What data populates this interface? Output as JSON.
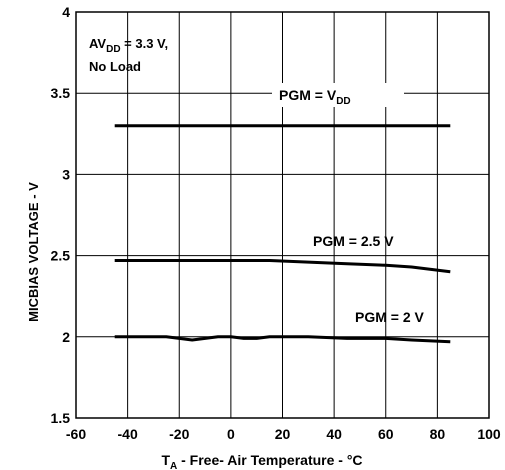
{
  "chart_data": {
    "type": "line",
    "xlabel": {
      "main": "T",
      "sub": "A",
      "rest": " - Free- Air Temperature - °C"
    },
    "ylabel": "MICBIAS VOLTAGE - V",
    "xlim": [
      -60,
      100
    ],
    "ylim": [
      1.5,
      4
    ],
    "xticks": [
      -60,
      -40,
      -20,
      0,
      20,
      40,
      60,
      80,
      100
    ],
    "xtick_labels": [
      "-60",
      "-40",
      "-20",
      "0",
      "20",
      "40",
      "60",
      "80",
      "100"
    ],
    "yticks": [
      1.5,
      2,
      2.5,
      3,
      3.5,
      4
    ],
    "ytick_labels": [
      "1.5",
      "2",
      "2.5",
      "3",
      "3.5",
      "4"
    ],
    "grid": true,
    "condition": {
      "line1_main": "AV",
      "line1_sub": "DD",
      "line1_rest": " = 3.3 V,",
      "line2": "No Load"
    },
    "series": [
      {
        "name": "PGM = V_DD",
        "label_main": "PGM = V",
        "label_sub": "DD",
        "x": [
          -45,
          -20,
          0,
          20,
          40,
          60,
          85
        ],
        "y": [
          3.3,
          3.3,
          3.3,
          3.3,
          3.3,
          3.3,
          3.3
        ]
      },
      {
        "name": "PGM = 2.5 V",
        "label_main": "PGM = 2.5 V",
        "label_sub": "",
        "x": [
          -45,
          -20,
          0,
          15,
          30,
          45,
          60,
          70,
          85
        ],
        "y": [
          2.47,
          2.47,
          2.47,
          2.47,
          2.46,
          2.45,
          2.44,
          2.43,
          2.4
        ]
      },
      {
        "name": "PGM = 2 V",
        "label_main": "PGM = 2 V",
        "label_sub": "",
        "x": [
          -45,
          -25,
          -20,
          -15,
          -10,
          -5,
          0,
          5,
          10,
          15,
          30,
          45,
          60,
          70,
          85
        ],
        "y": [
          2.0,
          2.0,
          1.99,
          1.98,
          1.99,
          2.0,
          2.0,
          1.99,
          1.99,
          2.0,
          2.0,
          1.99,
          1.99,
          1.98,
          1.97
        ]
      }
    ]
  }
}
